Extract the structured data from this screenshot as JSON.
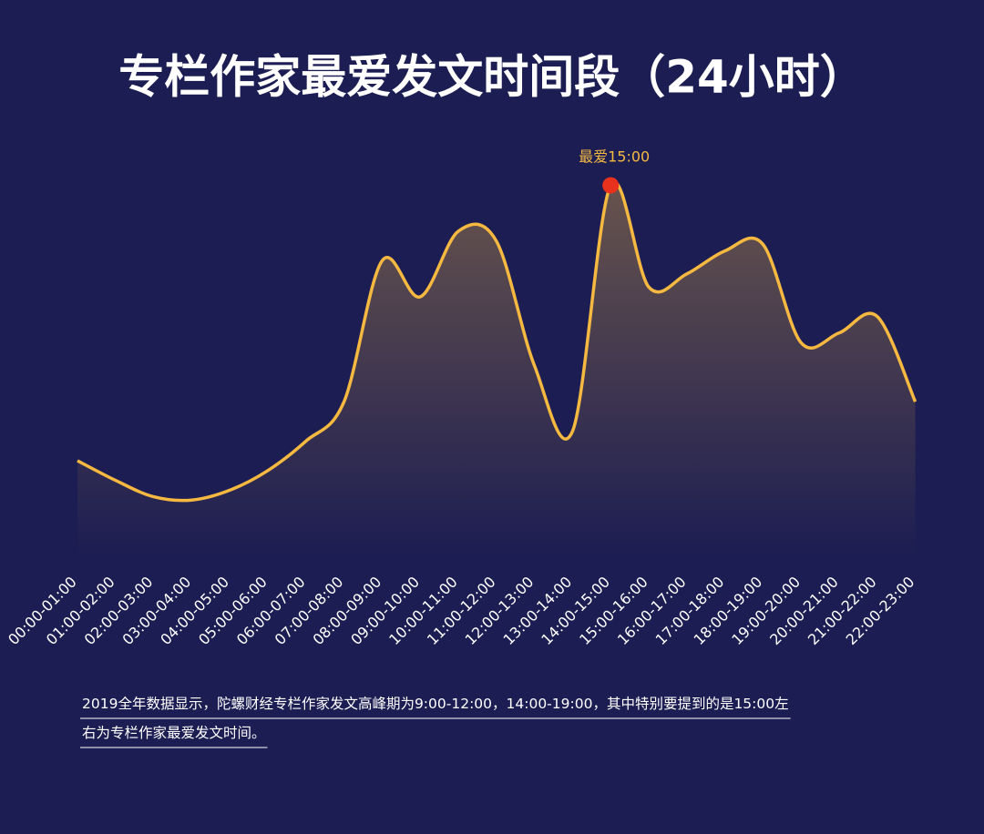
{
  "chart_data": {
    "type": "line",
    "title": "专栏作家最爱发文时间段（24小时）",
    "categories": [
      "00:00-01:00",
      "01:00-02:00",
      "02:00-03:00",
      "03:00-04:00",
      "04:00-05:00",
      "05:00-06:00",
      "06:00-07:00",
      "07:00-08:00",
      "08:00-09:00",
      "09:00-10:00",
      "10:00-11:00",
      "11:00-12:00",
      "12:00-13:00",
      "13:00-14:00",
      "14:00-15:00",
      "15:00-16:00",
      "16:00-17:00",
      "17:00-18:00",
      "18:00-19:00",
      "19:00-20:00",
      "20:00-21:00",
      "21:00-22:00",
      "22:00-23:00"
    ],
    "values": [
      15,
      9,
      4,
      3,
      6,
      12,
      21,
      33,
      76,
      65,
      85,
      82,
      44,
      24,
      99,
      68,
      72,
      79,
      81,
      51,
      54,
      59,
      33
    ],
    "color": "#f5b942",
    "highlight_color": "#e8321e",
    "annotation": "最爱15:00",
    "note_lines": [
      "2019全年数据显示，陀螺财经专栏作家发文高峰期为9:00-12:00，14:00-19:00，其中特别要提到的是15:00左",
      "右为专栏作家最爱发文时间。"
    ]
  }
}
